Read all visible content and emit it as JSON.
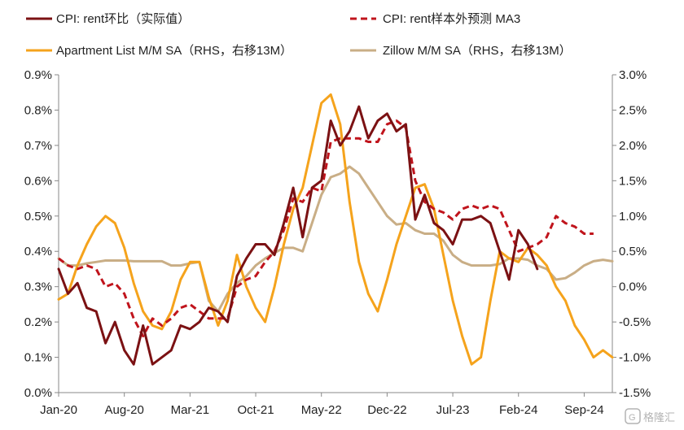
{
  "chart_data": {
    "type": "line",
    "title": "",
    "x_tick_labels": [
      "Jan-20",
      "Aug-20",
      "Mar-21",
      "Oct-21",
      "May-22",
      "Dec-22",
      "Jul-23",
      "Feb-24",
      "Sep-24"
    ],
    "x_range": [
      "2020-01",
      "2024-12"
    ],
    "y_left": {
      "min": 0.0,
      "max": 0.9,
      "step": 0.1,
      "format": "percent",
      "tick_labels": [
        "0.0%",
        "0.1%",
        "0.2%",
        "0.3%",
        "0.4%",
        "0.5%",
        "0.6%",
        "0.7%",
        "0.8%",
        "0.9%"
      ]
    },
    "y_right": {
      "min": -1.5,
      "max": 3.0,
      "step": 0.5,
      "format": "percent",
      "tick_labels": [
        "-1.5%",
        "-1.0%",
        "-0.5%",
        "0.0%",
        "0.5%",
        "1.0%",
        "1.5%",
        "2.0%",
        "2.5%",
        "3.0%"
      ]
    },
    "grid": false,
    "legend_position": "top",
    "series": [
      {
        "name": "CPI: rent环比（实际值）",
        "axis": "left",
        "color": "#7b1113",
        "style": "solid",
        "x": [
          "2020-01",
          "2020-02",
          "2020-03",
          "2020-04",
          "2020-05",
          "2020-06",
          "2020-07",
          "2020-08",
          "2020-09",
          "2020-10",
          "2020-11",
          "2020-12",
          "2021-01",
          "2021-02",
          "2021-03",
          "2021-04",
          "2021-05",
          "2021-06",
          "2021-07",
          "2021-08",
          "2021-09",
          "2021-10",
          "2021-11",
          "2021-12",
          "2022-01",
          "2022-02",
          "2022-03",
          "2022-04",
          "2022-05",
          "2022-06",
          "2022-07",
          "2022-08",
          "2022-09",
          "2022-10",
          "2022-11",
          "2022-12",
          "2023-01",
          "2023-02",
          "2023-03",
          "2023-04",
          "2023-05",
          "2023-06",
          "2023-07",
          "2023-08",
          "2023-09",
          "2023-10",
          "2023-11",
          "2023-12",
          "2024-01",
          "2024-02",
          "2024-03",
          "2024-04"
        ],
        "y": [
          0.35,
          0.28,
          0.31,
          0.24,
          0.23,
          0.14,
          0.2,
          0.12,
          0.08,
          0.19,
          0.08,
          0.1,
          0.12,
          0.19,
          0.18,
          0.2,
          0.24,
          0.23,
          0.2,
          0.33,
          0.38,
          0.42,
          0.42,
          0.39,
          0.48,
          0.58,
          0.44,
          0.58,
          0.6,
          0.77,
          0.7,
          0.74,
          0.81,
          0.72,
          0.77,
          0.79,
          0.74,
          0.76,
          0.49,
          0.56,
          0.48,
          0.46,
          0.42,
          0.49,
          0.49,
          0.5,
          0.48,
          0.4,
          0.32,
          0.46,
          0.42,
          0.35
        ]
      },
      {
        "name": "CPI: rent样本外预测 MA3",
        "axis": "left",
        "color": "#c0141c",
        "style": "dashed",
        "x": [
          "2020-01",
          "2020-02",
          "2020-03",
          "2020-04",
          "2020-05",
          "2020-06",
          "2020-07",
          "2020-08",
          "2020-09",
          "2020-10",
          "2020-11",
          "2020-12",
          "2021-01",
          "2021-02",
          "2021-03",
          "2021-04",
          "2021-05",
          "2021-06",
          "2021-07",
          "2021-08",
          "2021-09",
          "2021-10",
          "2021-11",
          "2021-12",
          "2022-01",
          "2022-02",
          "2022-03",
          "2022-04",
          "2022-05",
          "2022-06",
          "2022-07",
          "2022-08",
          "2022-09",
          "2022-10",
          "2022-11",
          "2022-12",
          "2023-01",
          "2023-02",
          "2023-03",
          "2023-04",
          "2023-05",
          "2023-06",
          "2023-07",
          "2023-08",
          "2023-09",
          "2023-10",
          "2023-11",
          "2023-12",
          "2024-01",
          "2024-02",
          "2024-03",
          "2024-04",
          "2024-05",
          "2024-06",
          "2024-07",
          "2024-08",
          "2024-09",
          "2024-10"
        ],
        "y": [
          0.38,
          0.36,
          0.35,
          0.36,
          0.35,
          0.3,
          0.31,
          0.28,
          0.21,
          0.16,
          0.21,
          0.19,
          0.21,
          0.24,
          0.25,
          0.23,
          0.21,
          0.21,
          0.21,
          0.3,
          0.32,
          0.33,
          0.37,
          0.4,
          0.46,
          0.55,
          0.54,
          0.58,
          0.57,
          0.71,
          0.72,
          0.72,
          0.72,
          0.71,
          0.71,
          0.76,
          0.77,
          0.75,
          0.6,
          0.54,
          0.52,
          0.51,
          0.49,
          0.52,
          0.53,
          0.52,
          0.53,
          0.52,
          0.46,
          0.4,
          0.41,
          0.42,
          0.44,
          0.5,
          0.48,
          0.47,
          0.45,
          0.45
        ]
      },
      {
        "name": "Apartment List  M/M SA（RHS，右移13M）",
        "axis": "right",
        "color": "#f5a31c",
        "style": "solid",
        "x": [
          "2020-01",
          "2020-02",
          "2020-03",
          "2020-04",
          "2020-05",
          "2020-06",
          "2020-07",
          "2020-08",
          "2020-09",
          "2020-10",
          "2020-11",
          "2020-12",
          "2021-01",
          "2021-02",
          "2021-03",
          "2021-04",
          "2021-05",
          "2021-06",
          "2021-07",
          "2021-08",
          "2021-09",
          "2021-10",
          "2021-11",
          "2021-12",
          "2022-01",
          "2022-02",
          "2022-03",
          "2022-04",
          "2022-05",
          "2022-06",
          "2022-07",
          "2022-08",
          "2022-09",
          "2022-10",
          "2022-11",
          "2022-12",
          "2023-01",
          "2023-02",
          "2023-03",
          "2023-04",
          "2023-05",
          "2023-06",
          "2023-07",
          "2023-08",
          "2023-09",
          "2023-10",
          "2023-11",
          "2023-12",
          "2024-01",
          "2024-02",
          "2024-03",
          "2024-04",
          "2024-05",
          "2024-06",
          "2024-07",
          "2024-08",
          "2024-09",
          "2024-10",
          "2024-11",
          "2024-12"
        ],
        "y": [
          -0.18,
          -0.1,
          0.3,
          0.6,
          0.85,
          1.0,
          0.9,
          0.55,
          0.05,
          -0.35,
          -0.55,
          -0.6,
          -0.35,
          0.1,
          0.35,
          0.35,
          -0.15,
          -0.55,
          -0.2,
          0.45,
          0.0,
          -0.3,
          -0.5,
          0.0,
          0.6,
          1.1,
          1.4,
          2.0,
          2.6,
          2.72,
          2.3,
          1.2,
          0.35,
          -0.1,
          -0.35,
          0.1,
          0.6,
          1.0,
          1.4,
          1.45,
          1.1,
          0.45,
          -0.2,
          -0.7,
          -1.1,
          -1.0,
          -0.2,
          0.5,
          0.4,
          0.35,
          0.55,
          0.45,
          0.3,
          0.0,
          -0.2,
          -0.55,
          -0.75,
          -1.0,
          -0.9,
          -1.0
        ]
      },
      {
        "name": "Zillow M/M SA（RHS，右移13M）",
        "axis": "right",
        "color": "#c9ae86",
        "style": "solid",
        "x": [
          "2020-01",
          "2020-02",
          "2020-03",
          "2020-04",
          "2020-05",
          "2020-06",
          "2020-07",
          "2020-08",
          "2020-09",
          "2020-10",
          "2020-11",
          "2020-12",
          "2021-01",
          "2021-02",
          "2021-03",
          "2021-04",
          "2021-05",
          "2021-06",
          "2021-07",
          "2021-08",
          "2021-09",
          "2021-10",
          "2021-11",
          "2021-12",
          "2022-01",
          "2022-02",
          "2022-03",
          "2022-04",
          "2022-05",
          "2022-06",
          "2022-07",
          "2022-08",
          "2022-09",
          "2022-10",
          "2022-11",
          "2022-12",
          "2023-01",
          "2023-02",
          "2023-03",
          "2023-04",
          "2023-05",
          "2023-06",
          "2023-07",
          "2023-08",
          "2023-09",
          "2023-10",
          "2023-11",
          "2023-12",
          "2024-01",
          "2024-02",
          "2024-03",
          "2024-04",
          "2024-05",
          "2024-06",
          "2024-07",
          "2024-08",
          "2024-09",
          "2024-10",
          "2024-11",
          "2024-12"
        ],
        "y": [
          0.4,
          0.3,
          0.3,
          0.33,
          0.35,
          0.37,
          0.37,
          0.37,
          0.36,
          0.36,
          0.36,
          0.36,
          0.3,
          0.3,
          0.33,
          0.35,
          -0.2,
          -0.35,
          -0.1,
          0.05,
          0.15,
          0.3,
          0.4,
          0.48,
          0.55,
          0.55,
          0.5,
          0.9,
          1.3,
          1.55,
          1.6,
          1.7,
          1.6,
          1.4,
          1.2,
          1.0,
          0.88,
          0.9,
          0.8,
          0.75,
          0.75,
          0.65,
          0.45,
          0.35,
          0.3,
          0.3,
          0.3,
          0.32,
          0.4,
          0.4,
          0.38,
          0.3,
          0.25,
          0.1,
          0.12,
          0.2,
          0.3,
          0.36,
          0.38,
          0.36
        ]
      }
    ]
  },
  "legend": {
    "items": [
      {
        "label": "CPI: rent环比（实际值）"
      },
      {
        "label": "CPI: rent样本外预测 MA3"
      },
      {
        "label": "Apartment List  M/M SA（RHS，右移13M）"
      },
      {
        "label": "Zillow M/M SA（RHS，右移13M）"
      }
    ]
  },
  "watermark": {
    "text": "格隆汇"
  }
}
